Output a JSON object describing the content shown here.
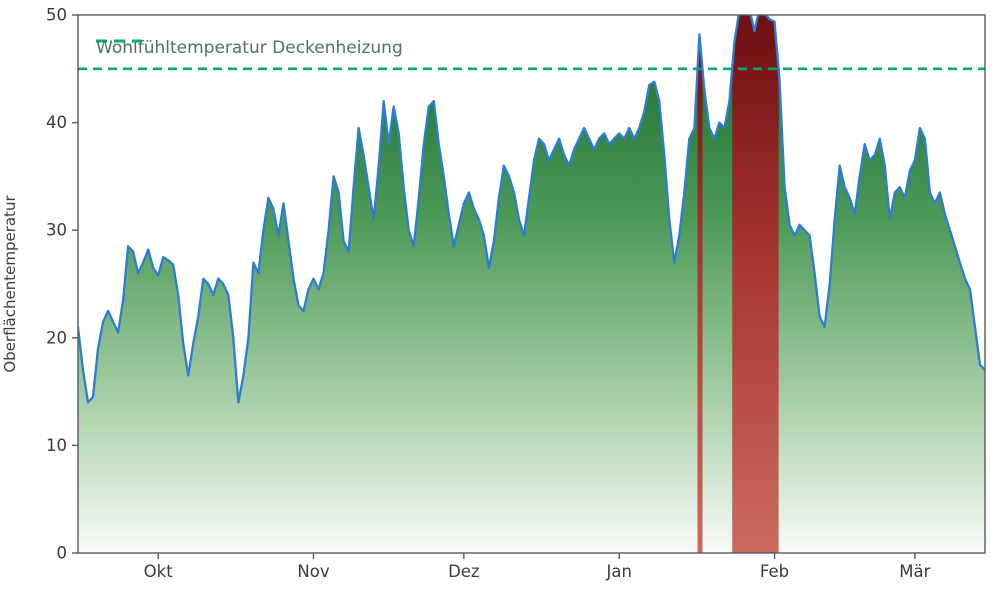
{
  "chart_data": {
    "type": "area",
    "title": "",
    "xlabel": "",
    "ylabel": "Oberflächentemperatur",
    "ylim": [
      0,
      50
    ],
    "yticks": [
      0,
      10,
      20,
      30,
      40,
      50
    ],
    "x_domain": [
      0,
      181
    ],
    "xticks": [
      {
        "day": 16,
        "label": "Okt"
      },
      {
        "day": 47,
        "label": "Nov"
      },
      {
        "day": 77,
        "label": "Dez"
      },
      {
        "day": 108,
        "label": "Jan"
      },
      {
        "day": 139,
        "label": "Feb"
      },
      {
        "day": 167,
        "label": "Mär"
      }
    ],
    "grid": false,
    "legend_position": "upper-left",
    "threshold": {
      "value": 45,
      "label": "Wohlfühltemperatur Deckenheizung",
      "color": "#00a878",
      "style": "dashed"
    },
    "series": [
      {
        "name": "Oberflächentemperatur",
        "values": [
          21,
          17,
          14,
          14.5,
          19,
          21.5,
          22.5,
          21.5,
          20.5,
          23.5,
          28.5,
          28,
          26,
          27,
          28.2,
          26.5,
          25.8,
          27.5,
          27.2,
          26.8,
          24,
          19.5,
          16.5,
          19.5,
          22,
          25.5,
          25,
          24,
          25.5,
          25,
          24,
          20,
          14,
          16.5,
          20,
          27,
          26,
          30,
          33,
          32,
          29.5,
          32.5,
          29,
          25.5,
          23,
          22.5,
          24.5,
          25.5,
          24.5,
          26,
          30,
          35,
          33.5,
          29,
          28,
          34,
          39.5,
          37,
          34,
          31,
          36,
          42,
          38,
          41.5,
          39,
          34,
          30,
          28.5,
          33,
          38,
          41.5,
          42,
          38,
          35,
          31.5,
          28.5,
          30.5,
          32.5,
          33.5,
          32,
          31,
          29.5,
          26.5,
          29,
          33,
          36,
          35,
          33.5,
          31,
          29.5,
          33,
          36.5,
          38.5,
          38,
          36.5,
          37.5,
          38.5,
          37,
          36,
          37.5,
          38.5,
          39.5,
          38.5,
          37.5,
          38.5,
          39,
          38,
          38.5,
          39,
          38.5,
          39.5,
          38.5,
          39.5,
          41,
          43.5,
          43.8,
          42,
          37,
          31,
          27,
          29.5,
          33.5,
          38.5,
          39.5,
          48.2,
          43,
          39.5,
          38.5,
          40,
          39.5,
          42,
          47.5,
          50.5,
          50.8,
          50.5,
          48.5,
          50.6,
          50.2,
          49.6,
          49.4,
          44,
          34,
          30.5,
          29.5,
          30.5,
          30,
          29.5,
          26,
          22,
          21,
          25,
          31,
          36,
          34,
          33,
          31.5,
          35,
          38,
          36.5,
          37,
          38.5,
          36,
          31,
          33.5,
          34,
          33,
          35.5,
          36.5,
          39.5,
          38.5,
          33.5,
          32.5,
          33.5,
          31.5,
          30,
          28.5,
          27,
          25.5,
          24.5,
          21,
          17.5,
          17
        ]
      }
    ],
    "colors": {
      "line": "#2d7dd2",
      "area_gradient_top": "#15682c",
      "area_gradient_mid1": "#4d9a58",
      "area_gradient_mid2": "#a9cfa9",
      "area_gradient_bottom": "#f8fbf8",
      "over_gradient_top": "#6e0f12",
      "over_gradient_mid": "#a63530",
      "over_gradient_bottom": "#cc6a5f",
      "axis": "#5a5a5a",
      "tick_text": "#3b3b3b"
    }
  }
}
